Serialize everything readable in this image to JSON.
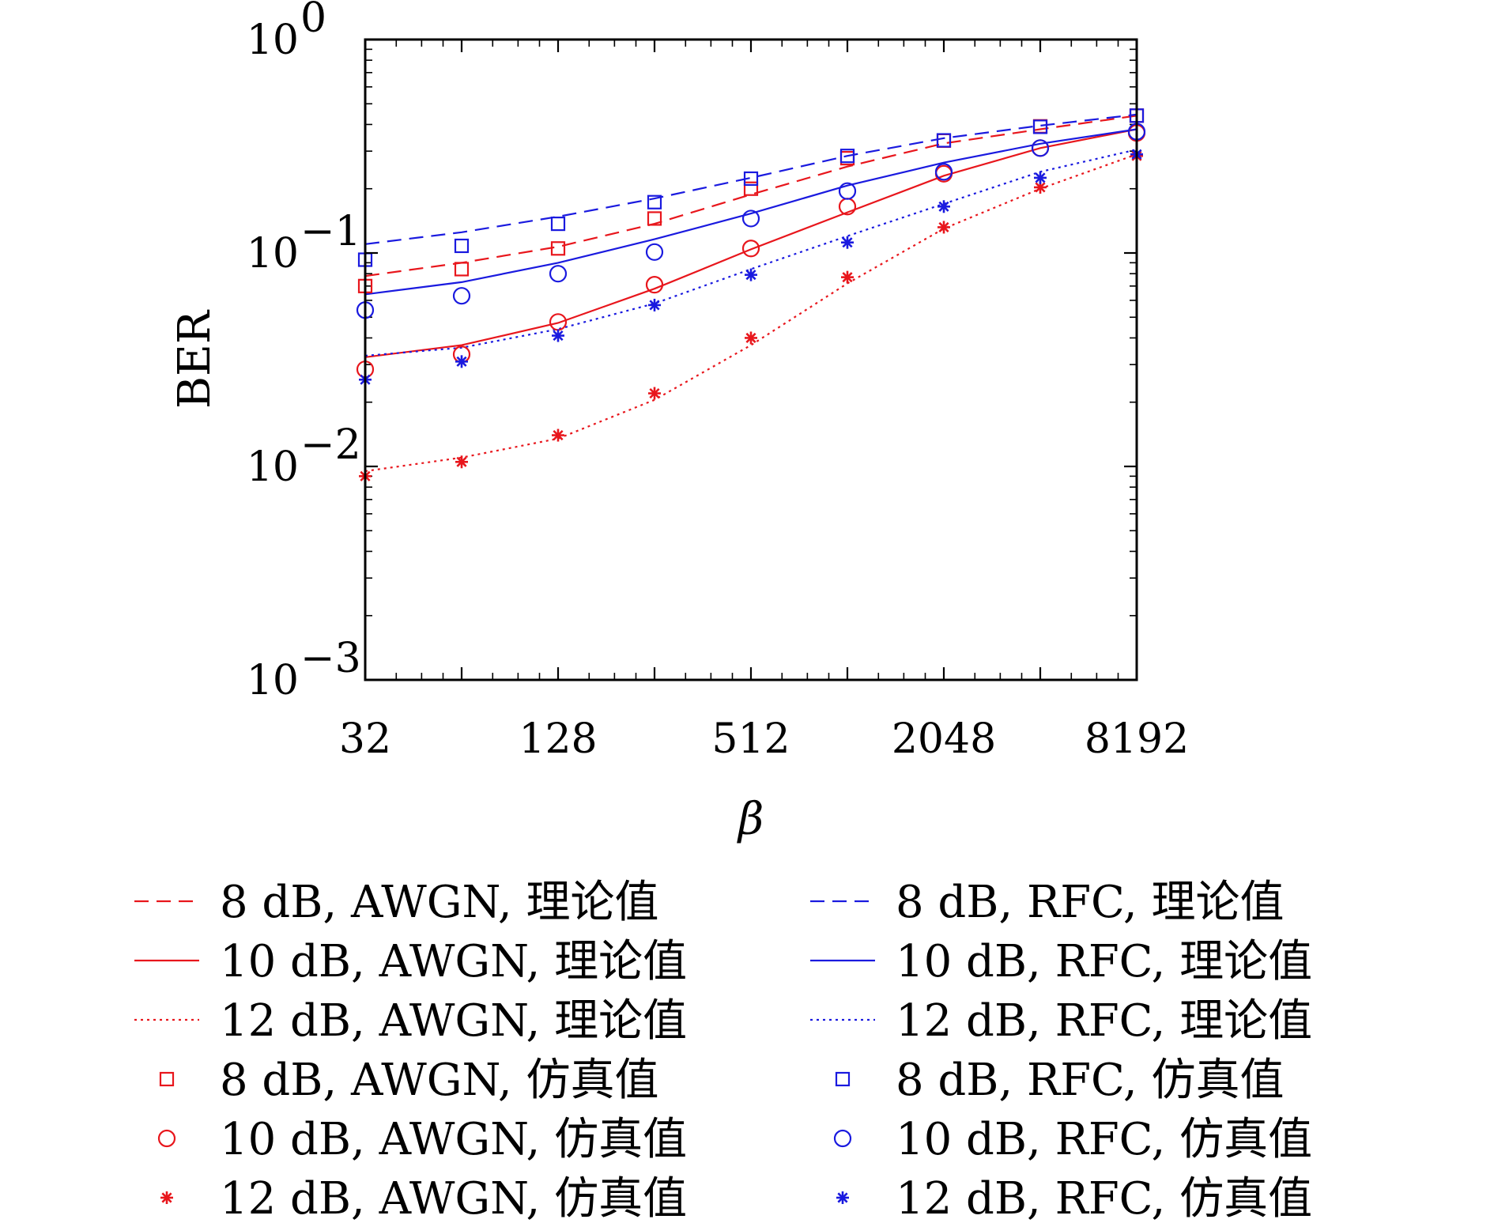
{
  "chart_data": {
    "type": "line",
    "xlabel": "β",
    "ylabel": "BER",
    "xscale": "log2",
    "yscale": "log10",
    "xlim": [
      32,
      8192
    ],
    "ylim": [
      0.001,
      1
    ],
    "x_ticks": [
      {
        "value": 32,
        "label": "32"
      },
      {
        "value": 128,
        "label": "128"
      },
      {
        "value": 512,
        "label": "512"
      },
      {
        "value": 2048,
        "label": "2048"
      },
      {
        "value": 8192,
        "label": "8192"
      }
    ],
    "y_ticks": [
      {
        "value": 1,
        "base": "10",
        "exp": "0"
      },
      {
        "value": 0.1,
        "base": "10",
        "exp": "−1"
      },
      {
        "value": 0.01,
        "base": "10",
        "exp": "−2"
      },
      {
        "value": 0.001,
        "base": "10",
        "exp": "−3"
      }
    ],
    "grid": false,
    "legend_position": "bottom",
    "x": [
      32,
      64,
      128,
      256,
      512,
      1024,
      2048,
      4096,
      8192
    ],
    "series": [
      {
        "name": "8 dB, AWGN, 理论值",
        "kind": "line",
        "dash": "dashed",
        "color": "#e8161c",
        "values": [
          0.078,
          0.09,
          0.107,
          0.137,
          0.188,
          0.254,
          0.326,
          0.38,
          0.44
        ]
      },
      {
        "name": "10 dB, AWGN, 理论值",
        "kind": "line",
        "dash": "solid",
        "color": "#e8161c",
        "values": [
          0.0325,
          0.037,
          0.047,
          0.068,
          0.104,
          0.155,
          0.23,
          0.31,
          0.38
        ]
      },
      {
        "name": "12 dB, AWGN, 理论值",
        "kind": "line",
        "dash": "dotted",
        "color": "#e8161c",
        "values": [
          0.0095,
          0.011,
          0.0135,
          0.0205,
          0.037,
          0.072,
          0.13,
          0.2,
          0.29
        ]
      },
      {
        "name": "8 dB, AWGN, 仿真值",
        "kind": "marker",
        "marker": "square",
        "color": "#e8161c",
        "values": [
          0.07,
          0.084,
          0.105,
          0.145,
          0.2,
          0.278,
          0.336,
          0.392,
          0.44
        ]
      },
      {
        "name": "10 dB, AWGN, 仿真值",
        "kind": "marker",
        "marker": "circle",
        "color": "#e8161c",
        "values": [
          0.0285,
          0.0335,
          0.0475,
          0.071,
          0.105,
          0.165,
          0.235,
          0.31,
          0.365
        ]
      },
      {
        "name": "12 dB, AWGN, 仿真值",
        "kind": "marker",
        "marker": "asterisk",
        "color": "#e8161c",
        "values": [
          0.009,
          0.0105,
          0.014,
          0.022,
          0.04,
          0.077,
          0.132,
          0.203,
          0.285
        ]
      },
      {
        "name": "8 dB, RFC, 理论值",
        "kind": "line",
        "dash": "dashed",
        "color": "#1a1adf",
        "values": [
          0.11,
          0.125,
          0.148,
          0.18,
          0.225,
          0.285,
          0.345,
          0.395,
          0.445
        ]
      },
      {
        "name": "10 dB, RFC, 理论值",
        "kind": "line",
        "dash": "solid",
        "color": "#1a1adf",
        "values": [
          0.064,
          0.073,
          0.09,
          0.116,
          0.153,
          0.207,
          0.265,
          0.325,
          0.38
        ]
      },
      {
        "name": "12 dB, RFC, 理论值",
        "kind": "line",
        "dash": "dotted",
        "color": "#1a1adf",
        "values": [
          0.033,
          0.036,
          0.044,
          0.058,
          0.084,
          0.12,
          0.17,
          0.24,
          0.305
        ]
      },
      {
        "name": "8 dB, RFC, 仿真值",
        "kind": "marker",
        "marker": "square",
        "color": "#1a1adf",
        "values": [
          0.093,
          0.108,
          0.137,
          0.173,
          0.223,
          0.285,
          0.337,
          0.39,
          0.44
        ]
      },
      {
        "name": "10 dB, RFC, 仿真值",
        "kind": "marker",
        "marker": "circle",
        "color": "#1a1adf",
        "values": [
          0.054,
          0.063,
          0.08,
          0.101,
          0.145,
          0.195,
          0.24,
          0.31,
          0.37
        ]
      },
      {
        "name": "12 dB, RFC, 仿真值",
        "kind": "marker",
        "marker": "asterisk",
        "color": "#1a1adf",
        "values": [
          0.0255,
          0.031,
          0.041,
          0.057,
          0.079,
          0.112,
          0.165,
          0.225,
          0.29
        ]
      }
    ]
  }
}
